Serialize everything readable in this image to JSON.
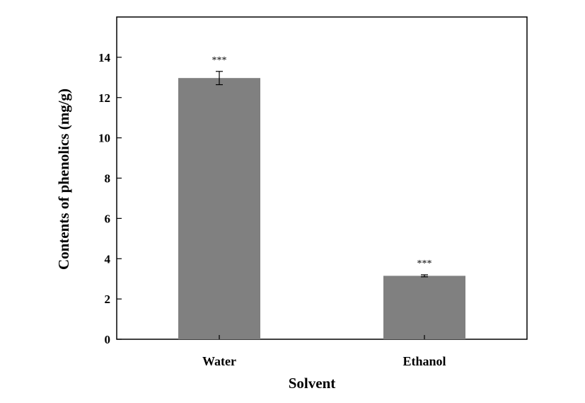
{
  "chart_data": {
    "type": "bar",
    "categories": [
      "Water",
      "Ethanol"
    ],
    "values": [
      12.97,
      3.15
    ],
    "errors": [
      0.33,
      0.05
    ],
    "annotations": [
      "***",
      "***"
    ],
    "xlabel": "Solvent",
    "ylabel": "Contents of phenolics  (mg/g)",
    "ylim": [
      0,
      16
    ],
    "yticks": [
      "0",
      "2",
      "4",
      "6",
      "8",
      "10",
      "12",
      "14"
    ],
    "bar_color": "#808080",
    "grid": false
  }
}
